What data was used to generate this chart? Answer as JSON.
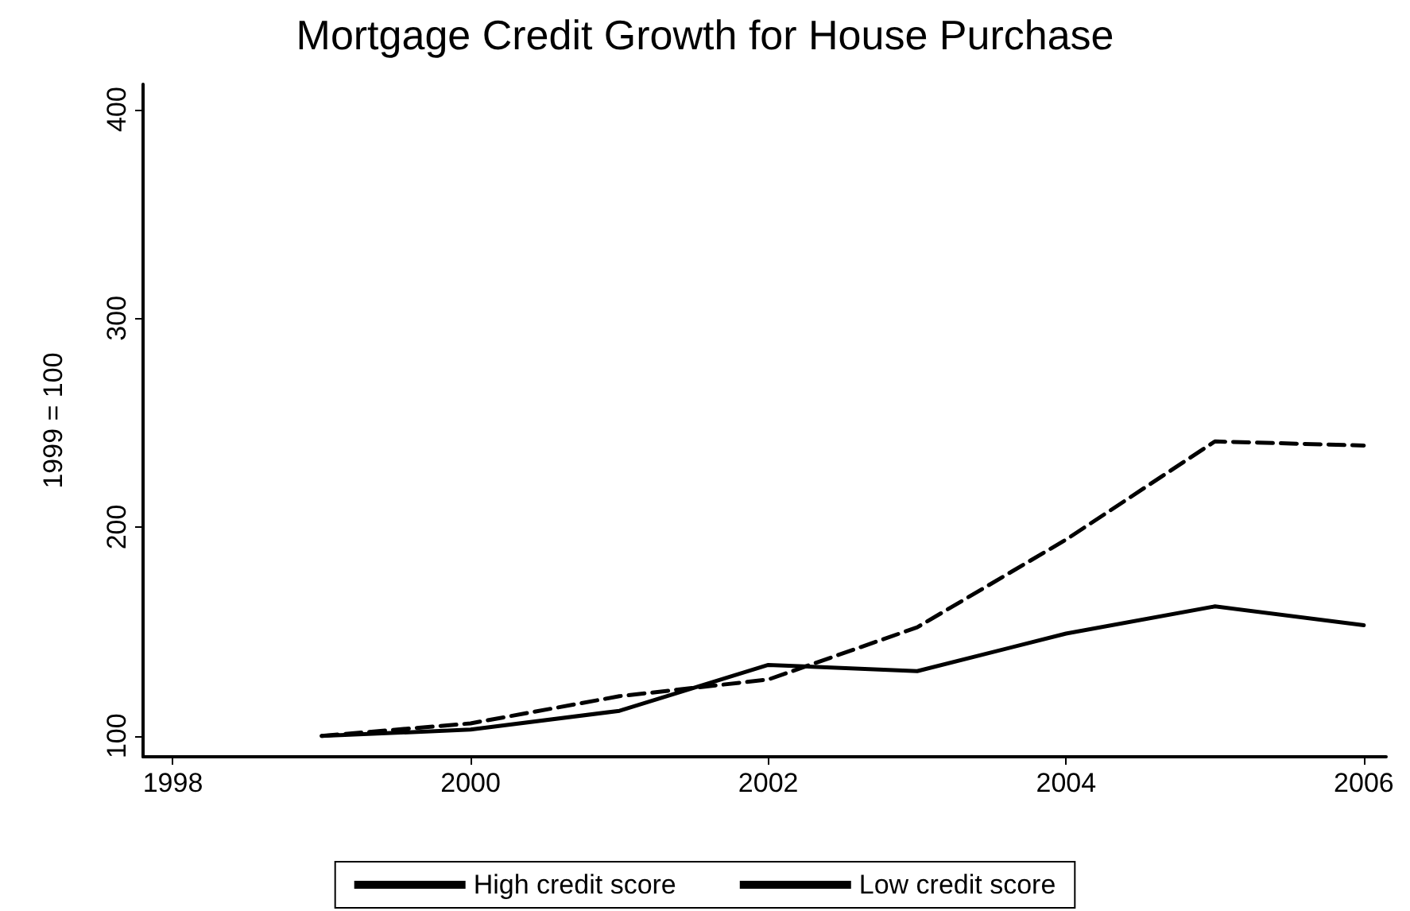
{
  "chart_data": {
    "type": "line",
    "title": "Mortgage Credit Growth for House Purchase",
    "ylabel": "1999 = 100",
    "x": [
      1999,
      2000,
      2001,
      2002,
      2003,
      2004,
      2005,
      2006
    ],
    "series": [
      {
        "name": "High credit score",
        "color": "#000000",
        "line_style": "solid",
        "values": [
          100,
          103,
          112,
          134,
          131,
          149,
          162,
          153
        ]
      },
      {
        "name": "Low credit score",
        "color": "#000000",
        "line_style": "dashed",
        "values": [
          100,
          106,
          119,
          127,
          152,
          194,
          241,
          239
        ]
      }
    ],
    "xlim": [
      1997.8,
      2006.15
    ],
    "xticks": [
      1998,
      2000,
      2002,
      2004,
      2006
    ],
    "ylim": [
      90,
      412
    ],
    "yticks": [
      100,
      200,
      300,
      400
    ],
    "grid": false,
    "legend": "bottom",
    "marker": "none"
  }
}
